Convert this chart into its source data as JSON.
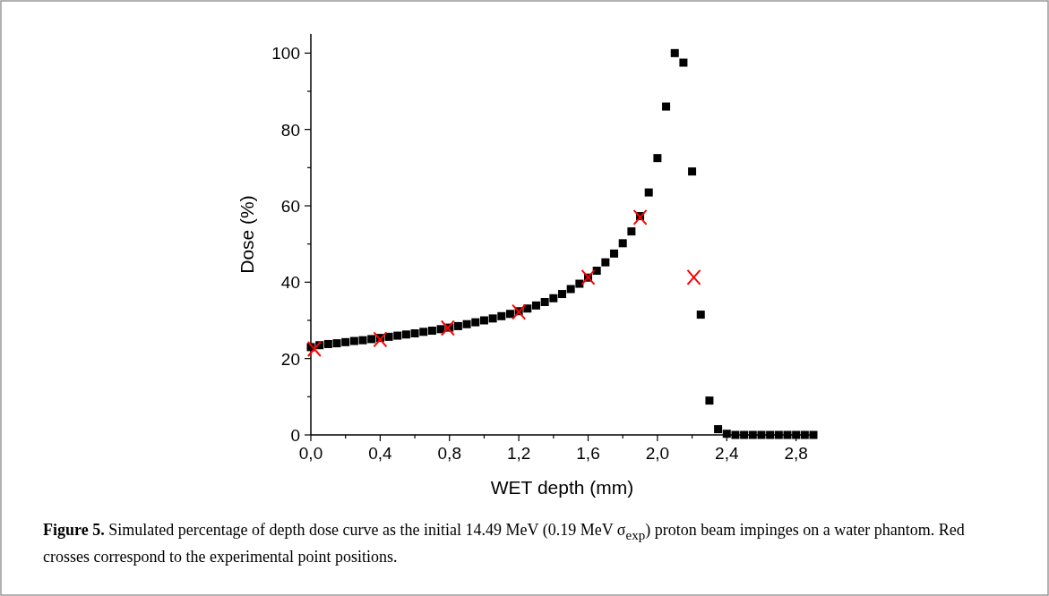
{
  "chart_data": {
    "type": "scatter",
    "xlabel": "WET depth (mm)",
    "ylabel": "Dose (%)",
    "xlim": [
      0,
      2.9
    ],
    "ylim": [
      0,
      105
    ],
    "xticks": [
      {
        "value": 0,
        "label": "0,0"
      },
      {
        "value": 0.2,
        "label": null
      },
      {
        "value": 0.4,
        "label": "0,4"
      },
      {
        "value": 0.6,
        "label": null
      },
      {
        "value": 0.8,
        "label": "0,8"
      },
      {
        "value": 1.0,
        "label": null
      },
      {
        "value": 1.2,
        "label": "1,2"
      },
      {
        "value": 1.4,
        "label": null
      },
      {
        "value": 1.6,
        "label": "1,6"
      },
      {
        "value": 1.8,
        "label": null
      },
      {
        "value": 2.0,
        "label": "2,0"
      },
      {
        "value": 2.2,
        "label": null
      },
      {
        "value": 2.4,
        "label": "2,4"
      },
      {
        "value": 2.6,
        "label": null
      },
      {
        "value": 2.8,
        "label": "2,8"
      }
    ],
    "yticks": [
      0,
      {
        "value": 10,
        "label": null
      },
      20,
      {
        "value": 30,
        "label": null
      },
      40,
      {
        "value": 50,
        "label": null
      },
      60,
      {
        "value": 70,
        "label": null
      },
      80,
      {
        "value": 90,
        "label": null
      },
      100
    ],
    "grid": false,
    "series": [
      {
        "color": "#000000",
        "marker": "square",
        "x": [
          0,
          0.05,
          0.1,
          0.15,
          0.2,
          0.25,
          0.3,
          0.35,
          0.4,
          0.45,
          0.5,
          0.55,
          0.6,
          0.65,
          0.7,
          0.75,
          0.8,
          0.85,
          0.9,
          0.95,
          1.0,
          1.05,
          1.1,
          1.15,
          1.2,
          1.25,
          1.3,
          1.35,
          1.4,
          1.45,
          1.5,
          1.55,
          1.6,
          1.65,
          1.7,
          1.75,
          1.8,
          1.85,
          1.9,
          1.95,
          2.0,
          2.05,
          2.1,
          2.15,
          2.2,
          2.25,
          2.3,
          2.35,
          2.4,
          2.45,
          2.5,
          2.55,
          2.6,
          2.65,
          2.7,
          2.75,
          2.8,
          2.85,
          2.9
        ],
        "values": [
          23.0,
          23.5,
          23.8,
          24.0,
          24.3,
          24.6,
          24.8,
          25.1,
          25.4,
          25.7,
          26.0,
          26.3,
          26.6,
          27.0,
          27.3,
          27.7,
          28.1,
          28.5,
          29.0,
          29.5,
          30.0,
          30.5,
          31.1,
          31.7,
          32.4,
          33.1,
          33.9,
          34.8,
          35.8,
          36.9,
          38.2,
          39.6,
          41.2,
          43.0,
          45.2,
          47.5,
          50.2,
          53.3,
          57.3,
          63.5,
          72.5,
          86,
          100,
          97.5,
          69,
          31.5,
          9,
          1.5,
          0.3,
          0,
          0,
          0,
          0,
          0,
          0,
          0,
          0,
          0,
          0
        ]
      },
      {
        "color": "#ff0000",
        "marker": "cross",
        "x": [
          0.02,
          0.4,
          0.79,
          1.2,
          1.6,
          1.9,
          2.21
        ],
        "values": [
          22.5,
          25,
          28,
          32.2,
          41.3,
          57,
          41.3
        ]
      }
    ],
    "annotations": [
      "Figure 5.",
      "Simulated percentage of depth dose curve as the initial 14.49 MeV (0.19 MeV σ$_{exp}$) proton beam impinges on a water phantom. Red crosses correspond to the experimental point positions."
    ]
  }
}
